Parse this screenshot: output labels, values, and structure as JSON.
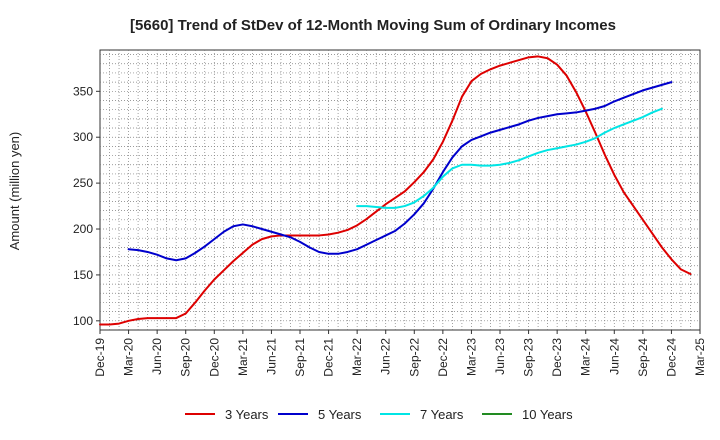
{
  "chart_data": {
    "type": "line",
    "title": "[5660]  Trend of StDev of 12-Month Moving Sum of Ordinary Incomes",
    "xlabel": "",
    "ylabel": "Amount (million yen)",
    "ylim": [
      90,
      395
    ],
    "yticks": [
      100,
      150,
      200,
      250,
      300,
      350
    ],
    "xticks": [
      "Dec-19",
      "Mar-20",
      "Jun-20",
      "Sep-20",
      "Dec-20",
      "Mar-21",
      "Jun-21",
      "Sep-21",
      "Dec-21",
      "Mar-22",
      "Jun-22",
      "Sep-22",
      "Dec-22",
      "Mar-23",
      "Jun-23",
      "Sep-23",
      "Dec-23",
      "Mar-24",
      "Jun-24",
      "Sep-24",
      "Dec-24",
      "Mar-25"
    ],
    "grid": true,
    "legend_position": "bottom",
    "series": [
      {
        "name": "3 Years",
        "color": "#dd0000",
        "start_index": 0,
        "values": [
          96,
          96,
          97,
          100,
          102,
          103,
          103,
          103,
          103,
          108,
          120,
          133,
          145,
          155,
          165,
          174,
          183,
          189,
          192,
          193,
          193,
          193,
          193,
          193,
          194,
          196,
          199,
          204,
          211,
          219,
          227,
          234,
          241,
          251,
          262,
          276,
          295,
          318,
          344,
          361,
          369,
          374,
          378,
          381,
          384,
          387,
          388,
          386,
          379,
          367,
          349,
          328,
          305,
          281,
          259,
          240,
          225,
          210,
          195,
          180,
          167,
          156,
          151
        ]
      },
      {
        "name": "5 Years",
        "color": "#0000cc",
        "start_index": 3,
        "values": [
          178,
          177,
          175,
          172,
          168,
          166,
          168,
          174,
          181,
          189,
          197,
          203,
          205,
          203,
          200,
          197,
          194,
          191,
          186,
          180,
          175,
          173,
          173,
          175,
          178,
          183,
          188,
          193,
          198,
          206,
          216,
          228,
          244,
          262,
          278,
          290,
          297,
          301,
          305,
          308,
          311,
          314,
          318,
          321,
          323,
          325,
          326,
          327,
          329,
          331,
          334,
          339,
          343,
          347,
          351,
          354,
          357,
          360
        ]
      },
      {
        "name": "7 Years",
        "color": "#00e5e5",
        "start_index": 27,
        "values": [
          225,
          225,
          224,
          223,
          223,
          225,
          229,
          236,
          245,
          257,
          266,
          270,
          270,
          269,
          269,
          270,
          272,
          275,
          279,
          283,
          286,
          288,
          290,
          292,
          295,
          299,
          305,
          310,
          314,
          318,
          322,
          327,
          331
        ]
      },
      {
        "name": "10 Years",
        "color": "#228b22",
        "start_index": 0,
        "values": []
      }
    ]
  }
}
